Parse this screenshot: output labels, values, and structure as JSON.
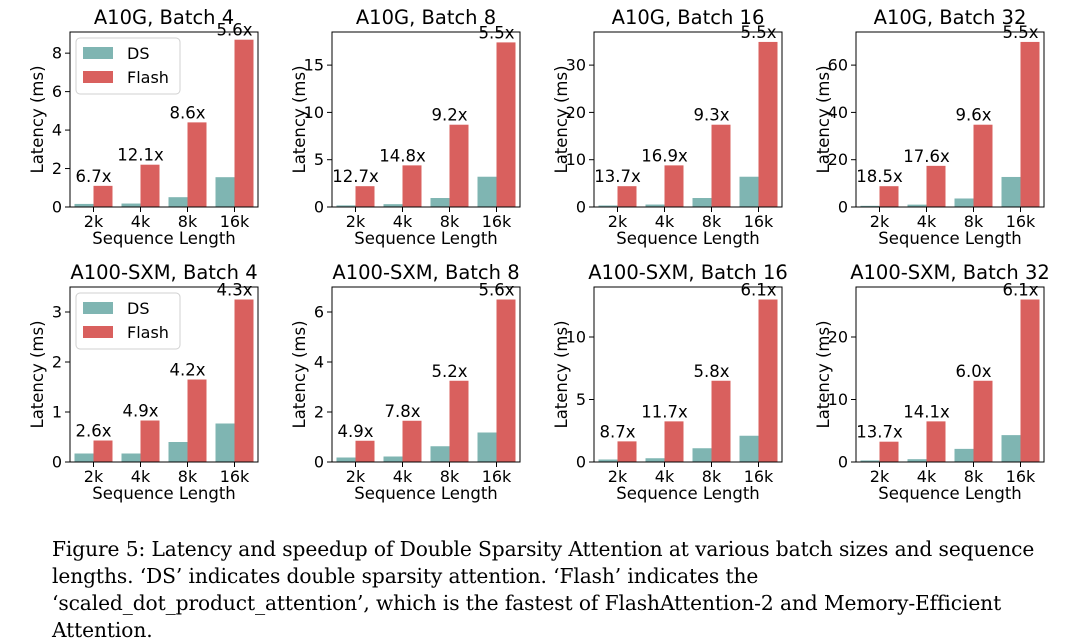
{
  "colors": {
    "DS": "#7fb5b2",
    "Flash": "#d9605e"
  },
  "legend": {
    "labels": [
      "DS",
      "Flash"
    ],
    "placement": "upper-left"
  },
  "caption": "Figure 5: Latency and speedup of Double Sparsity Attention at various batch sizes and sequence lengths. ‘DS’ indicates double sparsity attention. ‘Flash’ indicates the ‘scaled_dot_product_attention’, which is the fastest of FlashAttention-2 and Memory-Efficient Attention.",
  "chart_data": [
    {
      "type": "bar",
      "title": "A10G, Batch 4",
      "xlabel": "Sequence Length",
      "ylabel": "Latency (ms)",
      "categories": [
        "2k",
        "4k",
        "8k",
        "16k"
      ],
      "ylim": [
        0,
        9.1
      ],
      "yticks": [
        0,
        2,
        4,
        6,
        8
      ],
      "legend": true,
      "series": [
        {
          "name": "DS",
          "values": [
            0.16,
            0.18,
            0.51,
            1.55
          ]
        },
        {
          "name": "Flash",
          "values": [
            1.1,
            2.2,
            4.4,
            8.7
          ]
        }
      ],
      "annotations": [
        "6.7x",
        "12.1x",
        "8.6x",
        "5.6x"
      ]
    },
    {
      "type": "bar",
      "title": "A10G, Batch 8",
      "xlabel": "Sequence Length",
      "ylabel": "Latency (ms)",
      "categories": [
        "2k",
        "4k",
        "8k",
        "16k"
      ],
      "ylim": [
        0,
        18.5
      ],
      "yticks": [
        0,
        5,
        10,
        15
      ],
      "legend": false,
      "series": [
        {
          "name": "DS",
          "values": [
            0.17,
            0.3,
            0.95,
            3.2
          ]
        },
        {
          "name": "Flash",
          "values": [
            2.2,
            4.4,
            8.7,
            17.4
          ]
        }
      ],
      "annotations": [
        "12.7x",
        "14.8x",
        "9.2x",
        "5.5x"
      ]
    },
    {
      "type": "bar",
      "title": "A10G, Batch 16",
      "xlabel": "Sequence Length",
      "ylabel": "Latency (ms)",
      "categories": [
        "2k",
        "4k",
        "8k",
        "16k"
      ],
      "ylim": [
        0,
        37
      ],
      "yticks": [
        0,
        10,
        20,
        30
      ],
      "legend": false,
      "series": [
        {
          "name": "DS",
          "values": [
            0.32,
            0.52,
            1.9,
            6.4
          ]
        },
        {
          "name": "Flash",
          "values": [
            4.4,
            8.8,
            17.4,
            34.9
          ]
        }
      ],
      "annotations": [
        "13.7x",
        "16.9x",
        "9.3x",
        "5.5x"
      ]
    },
    {
      "type": "bar",
      "title": "A10G, Batch 32",
      "xlabel": "Sequence Length",
      "ylabel": "Latency (ms)",
      "categories": [
        "2k",
        "4k",
        "8k",
        "16k"
      ],
      "ylim": [
        0,
        74
      ],
      "yticks": [
        0,
        20,
        40,
        60
      ],
      "legend": false,
      "series": [
        {
          "name": "DS",
          "values": [
            0.5,
            1.0,
            3.6,
            12.7
          ]
        },
        {
          "name": "Flash",
          "values": [
            8.8,
            17.4,
            34.8,
            69.8
          ]
        }
      ],
      "annotations": [
        "18.5x",
        "17.6x",
        "9.6x",
        "5.5x"
      ]
    },
    {
      "type": "bar",
      "title": "A100-SXM, Batch 4",
      "xlabel": "Sequence Length",
      "ylabel": "Latency (ms)",
      "categories": [
        "2k",
        "4k",
        "8k",
        "16k"
      ],
      "ylim": [
        0,
        3.5
      ],
      "yticks": [
        0,
        1,
        2,
        3
      ],
      "legend": true,
      "series": [
        {
          "name": "DS",
          "values": [
            0.17,
            0.17,
            0.4,
            0.77
          ]
        },
        {
          "name": "Flash",
          "values": [
            0.43,
            0.83,
            1.65,
            3.25
          ]
        }
      ],
      "annotations": [
        "2.6x",
        "4.9x",
        "4.2x",
        "4.3x"
      ]
    },
    {
      "type": "bar",
      "title": "A100-SXM, Batch 8",
      "xlabel": "Sequence Length",
      "ylabel": "Latency (ms)",
      "categories": [
        "2k",
        "4k",
        "8k",
        "16k"
      ],
      "ylim": [
        0,
        7.0
      ],
      "yticks": [
        0,
        2,
        4,
        6
      ],
      "legend": false,
      "series": [
        {
          "name": "DS",
          "values": [
            0.18,
            0.22,
            0.63,
            1.18
          ]
        },
        {
          "name": "Flash",
          "values": [
            0.85,
            1.65,
            3.25,
            6.5
          ]
        }
      ],
      "annotations": [
        "4.9x",
        "7.8x",
        "5.2x",
        "5.6x"
      ]
    },
    {
      "type": "bar",
      "title": "A100-SXM, Batch 16",
      "xlabel": "Sequence Length",
      "ylabel": "Latency (ms)",
      "categories": [
        "2k",
        "4k",
        "8k",
        "16k"
      ],
      "ylim": [
        0,
        14
      ],
      "yticks": [
        0,
        5,
        10
      ],
      "legend": false,
      "series": [
        {
          "name": "DS",
          "values": [
            0.2,
            0.3,
            1.1,
            2.1
          ]
        },
        {
          "name": "Flash",
          "values": [
            1.65,
            3.25,
            6.5,
            13.0
          ]
        }
      ],
      "annotations": [
        "8.7x",
        "11.7x",
        "5.8x",
        "6.1x"
      ]
    },
    {
      "type": "bar",
      "title": "A100-SXM, Batch 32",
      "xlabel": "Sequence Length",
      "ylabel": "Latency (ms)",
      "categories": [
        "2k",
        "4k",
        "8k",
        "16k"
      ],
      "ylim": [
        0,
        28
      ],
      "yticks": [
        0,
        10,
        20
      ],
      "legend": false,
      "series": [
        {
          "name": "DS",
          "values": [
            0.25,
            0.45,
            2.1,
            4.3
          ]
        },
        {
          "name": "Flash",
          "values": [
            3.25,
            6.5,
            13.0,
            26.0
          ]
        }
      ],
      "annotations": [
        "13.7x",
        "14.1x",
        "6.0x",
        "6.1x"
      ]
    }
  ]
}
